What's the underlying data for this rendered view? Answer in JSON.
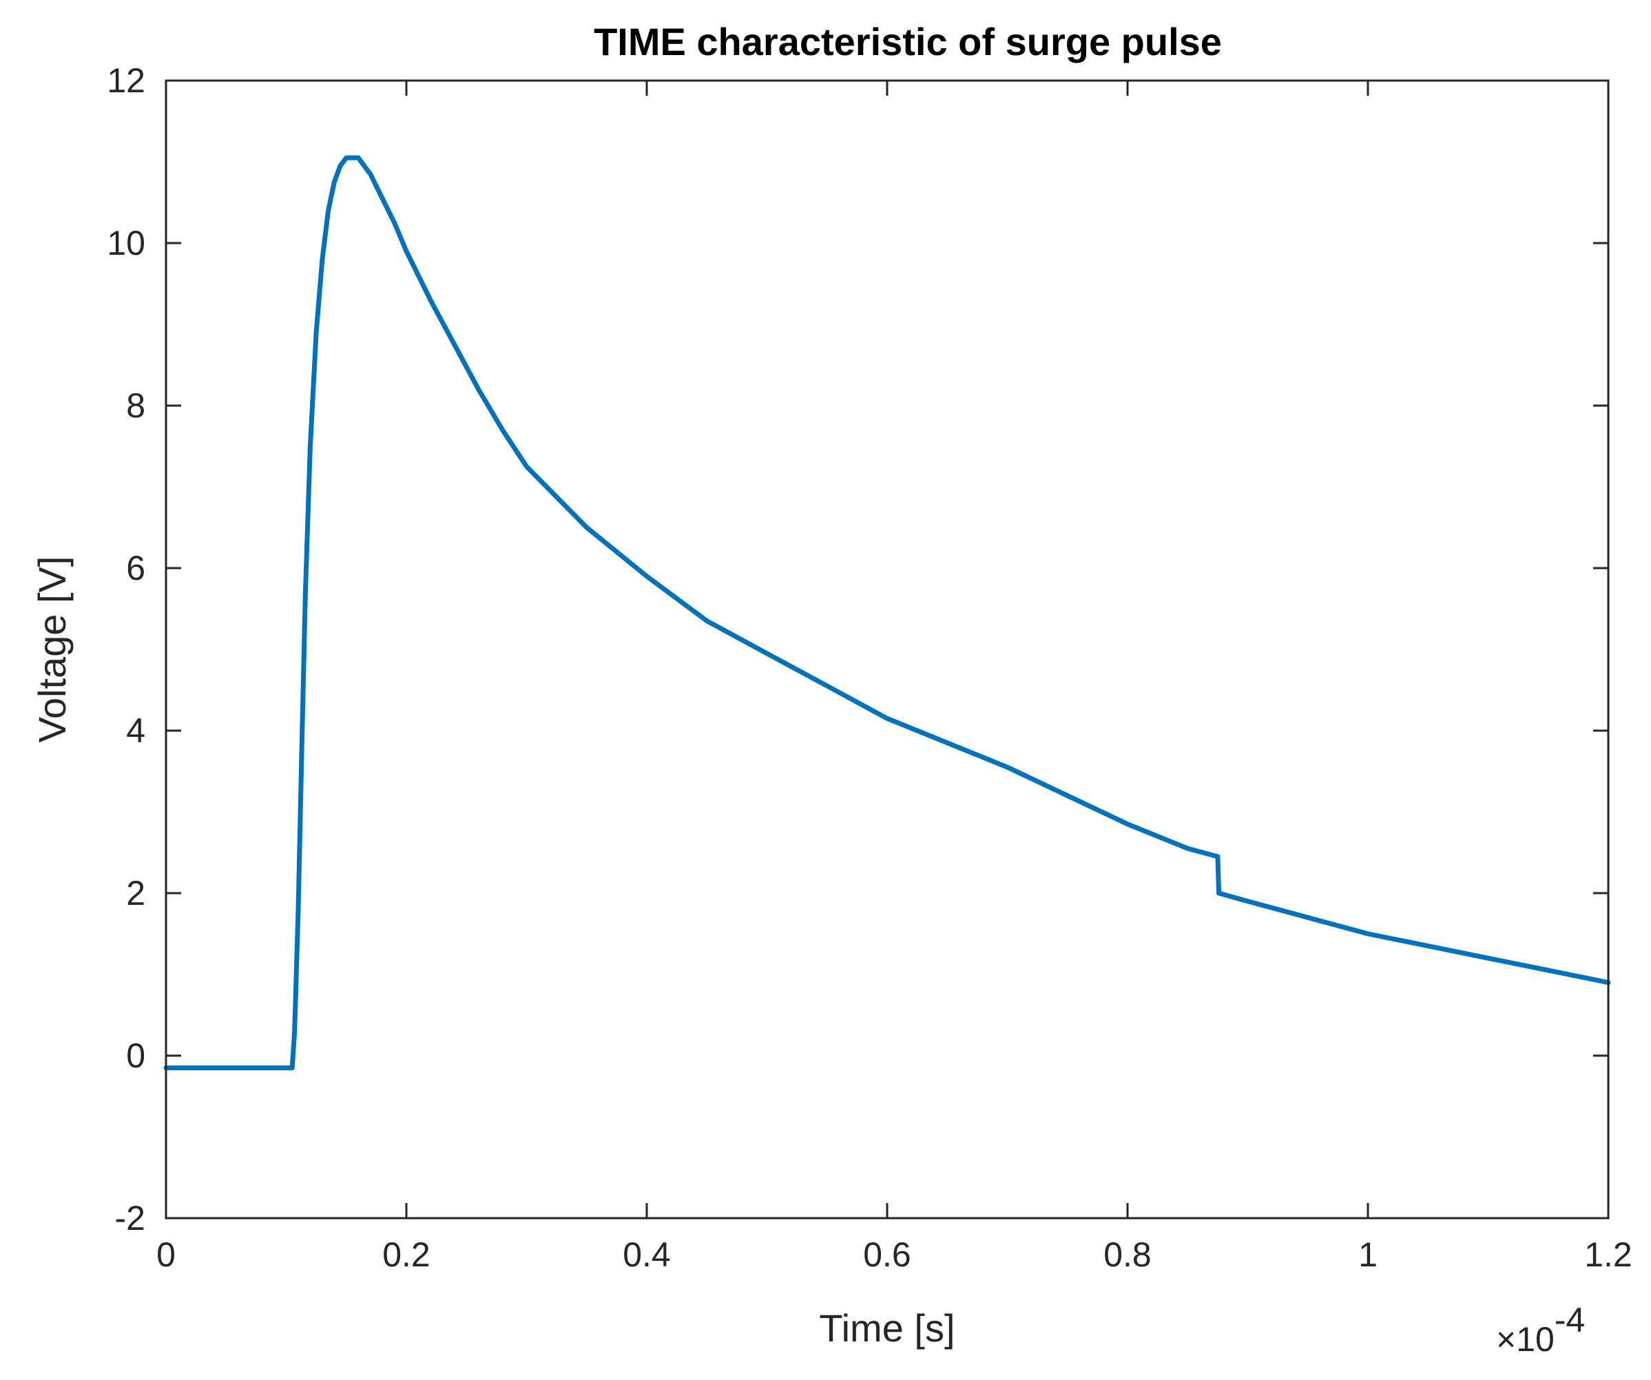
{
  "chart_data": {
    "type": "line",
    "title": "TIME characteristic of surge pulse",
    "xlabel": "Time [s]",
    "ylabel": "Voltage [V]",
    "x_exponent_base": "×10",
    "x_exponent_power": "-4",
    "xlim": [
      0,
      1.2
    ],
    "ylim": [
      -2,
      12
    ],
    "x_ticks": [
      0,
      0.2,
      0.4,
      0.6,
      0.8,
      1,
      1.2
    ],
    "x_tick_labels": [
      "0",
      "0.2",
      "0.4",
      "0.6",
      "0.8",
      "1",
      "1.2"
    ],
    "y_ticks": [
      -2,
      0,
      2,
      4,
      6,
      8,
      10,
      12
    ],
    "y_tick_labels": [
      "-2",
      "0",
      "2",
      "4",
      "6",
      "8",
      "10",
      "12"
    ],
    "grid": false,
    "legend": "none",
    "series": [
      {
        "color": "#0072BD",
        "x": [
          0,
          0.05,
          0.105,
          0.107,
          0.11,
          0.113,
          0.116,
          0.12,
          0.125,
          0.13,
          0.135,
          0.14,
          0.145,
          0.15,
          0.155,
          0.16,
          0.165,
          0.17,
          0.18,
          0.19,
          0.2,
          0.22,
          0.24,
          0.26,
          0.28,
          0.3,
          0.35,
          0.4,
          0.45,
          0.5,
          0.55,
          0.6,
          0.65,
          0.7,
          0.75,
          0.8,
          0.85,
          0.875,
          0.876,
          0.9,
          0.95,
          1.0,
          1.05,
          1.1,
          1.15,
          1.2
        ],
        "y": [
          -0.15,
          -0.15,
          -0.15,
          0.3,
          1.8,
          3.8,
          5.7,
          7.5,
          8.9,
          9.8,
          10.4,
          10.75,
          10.95,
          11.05,
          11.05,
          11.05,
          10.95,
          10.85,
          10.55,
          10.25,
          9.9,
          9.3,
          8.75,
          8.2,
          7.7,
          7.25,
          6.5,
          5.9,
          5.35,
          4.95,
          4.55,
          4.15,
          3.85,
          3.55,
          3.2,
          2.85,
          2.55,
          2.45,
          2.0,
          1.9,
          1.7,
          1.5,
          1.35,
          1.2,
          1.05,
          0.9
        ]
      }
    ]
  }
}
